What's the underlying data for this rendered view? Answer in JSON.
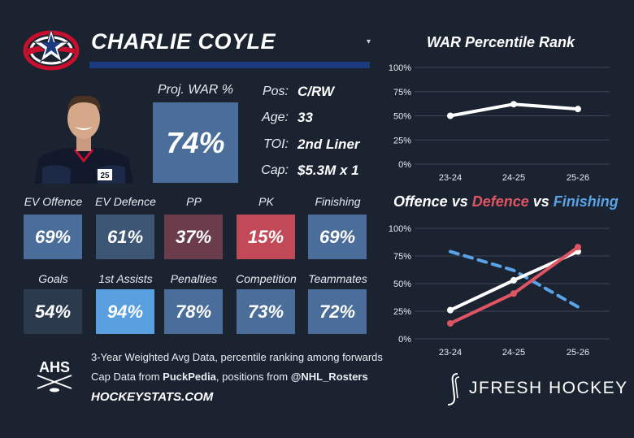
{
  "header": {
    "player_name": "CHARLIE COYLE",
    "caret": "▾"
  },
  "proj_war": {
    "label": "Proj. WAR %",
    "value": "74%",
    "color": "#4a6d9a"
  },
  "info": [
    {
      "label": "Pos:",
      "value": "C/RW"
    },
    {
      "label": "Age:",
      "value": "33"
    },
    {
      "label": "TOI:",
      "value": "2nd Liner"
    },
    {
      "label": "Cap:",
      "value": "$5.3M x 1"
    }
  ],
  "stats_row1": [
    {
      "label": "EV Offence",
      "value": "69%",
      "color": "#4a6d9a"
    },
    {
      "label": "EV Defence",
      "value": "61%",
      "color": "#3d5675"
    },
    {
      "label": "PP",
      "value": "37%",
      "color": "#6a3c4c"
    },
    {
      "label": "PK",
      "value": "15%",
      "color": "#c24a58"
    },
    {
      "label": "Finishing",
      "value": "69%",
      "color": "#4a6d9a"
    }
  ],
  "stats_row2": [
    {
      "label": "Goals",
      "value": "54%",
      "color": "#2c3a4e"
    },
    {
      "label": "1st Assists",
      "value": "94%",
      "color": "#5a9fe0"
    },
    {
      "label": "Penalties",
      "value": "78%",
      "color": "#4a6d9a"
    },
    {
      "label": "Competition",
      "value": "73%",
      "color": "#4a6d9a"
    },
    {
      "label": "Teammates",
      "value": "72%",
      "color": "#4a6d9a"
    }
  ],
  "footer": {
    "line1": "3-Year Weighted Avg Data, percentile ranking among forwards",
    "line2_prefix": "Cap Data from ",
    "line2_bold1": "PuckPedia",
    "line2_mid": ", positions from ",
    "line2_bold2": "@NHL_Rosters",
    "site": "HOCKEYSTATS.COM",
    "ahs": "AHS",
    "brand": "JFRESH HOCKEY"
  },
  "chart_data": [
    {
      "type": "line",
      "title": "WAR Percentile Rank",
      "categories": [
        "23-24",
        "24-25",
        "25-26"
      ],
      "y_ticks": [
        "0%",
        "25%",
        "50%",
        "75%",
        "100%"
      ],
      "ylim": [
        0,
        100
      ],
      "series": [
        {
          "values": [
            50,
            62,
            57
          ],
          "color": "#ffffff"
        }
      ]
    },
    {
      "type": "line",
      "title_parts": [
        {
          "text": "Offence",
          "color": "#ffffff"
        },
        {
          "text": " vs ",
          "color": "#ffffff"
        },
        {
          "text": "Defence",
          "color": "#e05563"
        },
        {
          "text": " vs ",
          "color": "#ffffff"
        },
        {
          "text": "Finishing",
          "color": "#5aa3e6"
        }
      ],
      "categories": [
        "23-24",
        "24-25",
        "25-26"
      ],
      "y_ticks": [
        "0%",
        "25%",
        "50%",
        "75%",
        "100%"
      ],
      "ylim": [
        0,
        100
      ],
      "series": [
        {
          "values": [
            79,
            62,
            29
          ],
          "color": "#5aa3e6",
          "dashed": true
        },
        {
          "values": [
            26,
            53,
            79
          ],
          "color": "#ffffff"
        },
        {
          "values": [
            14,
            41,
            83
          ],
          "color": "#e05563"
        }
      ]
    }
  ]
}
